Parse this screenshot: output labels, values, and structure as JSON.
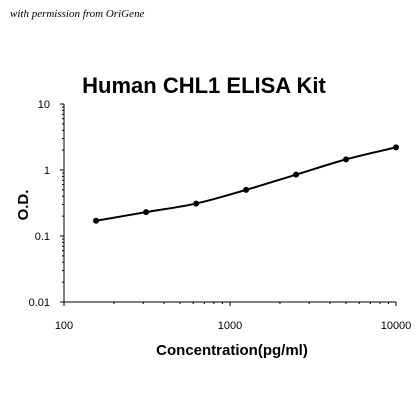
{
  "credit": "with permission from OriGene",
  "chart_data": {
    "type": "line",
    "title": "Human CHL1 ELISA Kit",
    "xlabel": "Concentration(pg/ml)",
    "ylabel": "O.D.",
    "x_scale": "log",
    "y_scale": "log",
    "xlim": [
      100,
      10000
    ],
    "ylim": [
      0.01,
      10
    ],
    "x_ticks": [
      "100",
      "1000",
      "10000"
    ],
    "y_ticks": [
      "0.01",
      "0.1",
      "1",
      "10"
    ],
    "grid": false,
    "legend": "none",
    "line_color": "#000000",
    "series": [
      {
        "x": [
          156,
          312,
          625,
          1250,
          2500,
          5000,
          10000
        ],
        "y": [
          0.17,
          0.23,
          0.31,
          0.5,
          0.85,
          1.45,
          2.2
        ]
      }
    ]
  }
}
